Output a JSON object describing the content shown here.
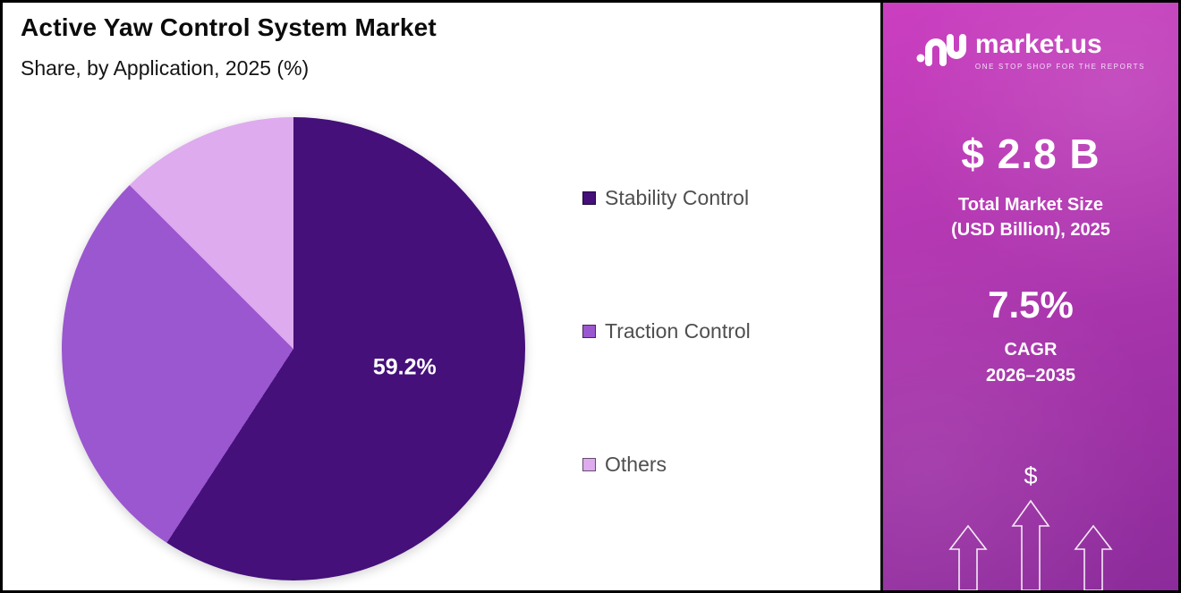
{
  "header": {
    "title": "Active Yaw Control System Market",
    "subtitle": "Share, by Application, 2025 (%)"
  },
  "chart_data": {
    "type": "pie",
    "title": "Active Yaw Control System Market",
    "subtitle": "Share, by Application, 2025 (%)",
    "categories": [
      "Stability Control",
      "Traction Control",
      "Others"
    ],
    "values": [
      59.2,
      28.3,
      12.5
    ],
    "colors": [
      "#45107a",
      "#9a57cf",
      "#ddabee"
    ],
    "data_labels": [
      "59.2%",
      "",
      ""
    ],
    "shown_data_label": "59.2%",
    "legend_position": "right",
    "start_angle": "top, clockwise"
  },
  "sidebar": {
    "logo": {
      "brand": "market.us",
      "tagline": "ONE STOP SHOP FOR THE REPORTS"
    },
    "market_size": {
      "value": "$ 2.8 B",
      "label_line1": "Total Market Size",
      "label_line2": "(USD Billion), 2025"
    },
    "cagr": {
      "value": "7.5%",
      "label_line1": "CAGR",
      "label_line2": "2026–2035"
    },
    "dollar_symbol": "$",
    "brand_colors": {
      "gradient_top": "#cb3fc0",
      "gradient_bottom": "#8c2b9b"
    }
  }
}
